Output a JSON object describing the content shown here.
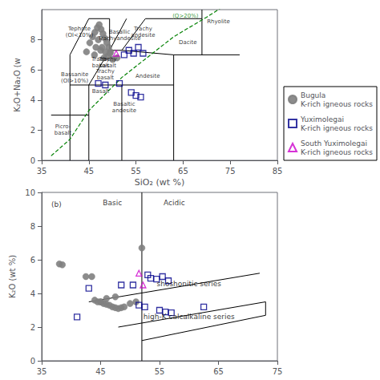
{
  "chart_data": [
    {
      "type": "scatter",
      "xlabel": "SiO₂ (wt %)",
      "ylabel": "K₂O+Na₂O (w",
      "xlim": [
        35,
        85
      ],
      "ylim": [
        0,
        10
      ],
      "xticks": [
        35,
        45,
        55,
        65,
        75,
        85
      ],
      "yticks": [
        0,
        2,
        4,
        6,
        8
      ],
      "legend": "lower right",
      "series": [
        {
          "name": "Bugula\nK-rich igneous rocks",
          "color": "#808080",
          "marker": "circle",
          "x": [
            44.5,
            45.2,
            45.8,
            46.3,
            46.8,
            47.2,
            47.6,
            48.0,
            48.4,
            48.8,
            49.2,
            49.6,
            46.5,
            47.0,
            47.8,
            48.5,
            49.0,
            50.0,
            51.0,
            46.2,
            47.5,
            48.2,
            49.5
          ],
          "values": [
            7.2,
            7.8,
            8.2,
            8.5,
            8.8,
            9.0,
            8.7,
            8.4,
            8.1,
            7.8,
            7.5,
            7.2,
            7.5,
            8.0,
            7.5,
            7.2,
            6.9,
            6.7,
            6.8,
            7.0,
            7.3,
            6.8,
            7.1
          ]
        },
        {
          "name": "Yuximolegai\nK-rich igneous rocks",
          "color": "#00008B",
          "marker": "square-open",
          "x": [
            47.0,
            48.5,
            51.5,
            52.5,
            53.5,
            54.5,
            55.5,
            56.5,
            54.0,
            55.0,
            56.0
          ],
          "values": [
            5.1,
            5.0,
            5.1,
            7.0,
            7.3,
            7.1,
            7.5,
            7.1,
            4.5,
            4.3,
            4.2
          ]
        },
        {
          "name": "South Yuximolegai\nK-rich igneous rocks",
          "color": "#CC00CC",
          "marker": "triangle-open",
          "x": [
            50.8
          ],
          "values": [
            7.1
          ]
        }
      ],
      "lines": [
        {
          "x": [
            37,
            41
          ],
          "y": [
            3,
            3
          ],
          "color": "black",
          "line_style": "solid"
        },
        {
          "x": [
            41,
            41
          ],
          "y": [
            0,
            3
          ],
          "color": "black",
          "line_style": "solid"
        },
        {
          "x": [
            41,
            45
          ],
          "y": [
            3,
            3
          ],
          "color": "black",
          "line_style": "solid"
        },
        {
          "x": [
            41,
            41
          ],
          "y": [
            3,
            7
          ],
          "color": "black",
          "line_style": "solid"
        },
        {
          "x": [
            41,
            45
          ],
          "y": [
            7,
            9.4
          ],
          "color": "black",
          "line_style": "solid"
        },
        {
          "x": [
            45,
            45
          ],
          "y": [
            0,
            5
          ],
          "color": "black",
          "line_style": "solid"
        },
        {
          "x": [
            45,
            52
          ],
          "y": [
            5,
            5
          ],
          "color": "black",
          "line_style": "solid"
        },
        {
          "x": [
            52,
            63
          ],
          "y": [
            5,
            5
          ],
          "color": "black",
          "line_style": "solid"
        },
        {
          "x": [
            63,
            77
          ],
          "y": [
            7,
            7
          ],
          "color": "black",
          "line_style": "solid"
        },
        {
          "x": [
            52,
            52
          ],
          "y": [
            0,
            5
          ],
          "color": "black",
          "line_style": "solid"
        },
        {
          "x": [
            63,
            63
          ],
          "y": [
            0,
            7
          ],
          "color": "black",
          "line_style": "solid"
        },
        {
          "x": [
            69,
            69
          ],
          "y": [
            7,
            10
          ],
          "color": "black",
          "line_style": "solid"
        },
        {
          "x": [
            45,
            49.4
          ],
          "y": [
            5,
            7.3
          ],
          "color": "black",
          "line_style": "solid"
        },
        {
          "x": [
            49.4,
            52
          ],
          "y": [
            7.3,
            7.3
          ],
          "color": "black",
          "line_style": "solid"
        },
        {
          "x": [
            52,
            57
          ],
          "y": [
            7.3,
            9.4
          ],
          "color": "black",
          "line_style": "solid"
        },
        {
          "x": [
            57,
            63
          ],
          "y": [
            9.4,
            9.4
          ],
          "color": "black",
          "line_style": "solid"
        },
        {
          "x": [
            63,
            69
          ],
          "y": [
            9.4,
            9.4
          ],
          "color": "black",
          "line_style": "solid"
        },
        {
          "x": [
            49.4,
            53
          ],
          "y": [
            7.3,
            9.4
          ],
          "color": "black",
          "line_style": "solid"
        },
        {
          "x": [
            52,
            63
          ],
          "y": [
            7.3,
            7
          ],
          "color": "black",
          "line_style": "solid"
        },
        {
          "x": [
            41,
            45
          ],
          "y": [
            5,
            5
          ],
          "color": "black",
          "line_style": "solid"
        },
        {
          "x": [
            45,
            49.4
          ],
          "y": [
            9.4,
            9.4
          ],
          "color": "black",
          "line_style": "solid"
        },
        {
          "x": [
            49.4,
            49.4
          ],
          "y": [
            7.3,
            9.4
          ],
          "color": "black",
          "line_style": "solid"
        },
        {
          "x": [
            37,
            41,
            45,
            52,
            63,
            70,
            75
          ],
          "y": [
            0.3,
            1.4,
            3.3,
            5.5,
            8.2,
            9.5,
            10.5
          ],
          "color": "green",
          "line_style": "dashed"
        }
      ],
      "annotations": [
        {
          "text": "Rhyolite",
          "x": 72.5,
          "y": 9.2
        },
        {
          "text": "Dacite",
          "x": 66,
          "y": 7.8
        },
        {
          "text": "Andesite",
          "x": 57.5,
          "y": 5.6
        },
        {
          "text": "Trachy\nandesite",
          "x": 56.5,
          "y": 8.5
        },
        {
          "text": "Basaltic\nandesite",
          "x": 52.5,
          "y": 3.5
        },
        {
          "text": "Tephrite\n(Ol<10%)",
          "x": 43.0,
          "y": 8.5
        },
        {
          "text": "Trachy\nbasalt",
          "x": 49.0,
          "y": 6.5
        },
        {
          "text": "Basallic\nTrachyandesite",
          "x": 51.5,
          "y": 8.3
        },
        {
          "text": "Bassanite\n(Ol>10%)",
          "x": 42.0,
          "y": 5.5
        },
        {
          "text": "Basalt",
          "x": 47.5,
          "y": 4.6
        },
        {
          "text": "Picro-\nbasalt",
          "x": 39.5,
          "y": 2.0
        },
        {
          "text": "Trachy\nbasalt",
          "x": 47.5,
          "y": 6.5
        },
        {
          "text": "Trachy\nbasalt",
          "x": 48.5,
          "y": 5.7
        },
        {
          "text": "(Q>20%)",
          "x": 65.5,
          "y": 9.6,
          "color": "green"
        }
      ]
    },
    {
      "type": "scatter",
      "ylabel": "K₂O (wt %)",
      "xlim": [
        35,
        75
      ],
      "ylim": [
        0,
        10
      ],
      "xticks": [
        35,
        45,
        55,
        65,
        75
      ],
      "yticks": [
        0,
        2,
        4,
        6,
        8,
        10
      ],
      "series": [
        {
          "color": "#808080",
          "marker": "circle",
          "x": [
            38.0,
            38.5,
            42.5,
            43.5,
            44.5,
            45.0,
            45.5,
            46.0,
            46.5,
            47.0,
            47.5,
            48.0,
            48.5,
            49.0,
            50.0,
            51.0,
            52.0,
            44.0,
            45.0,
            46.0,
            47.5
          ],
          "values": [
            5.75,
            5.7,
            5.0,
            5.0,
            3.5,
            3.5,
            3.4,
            3.35,
            3.3,
            3.2,
            3.15,
            3.1,
            3.15,
            3.2,
            3.4,
            3.5,
            6.7,
            3.6,
            3.5,
            3.7,
            3.8
          ]
        },
        {
          "color": "#00008B",
          "marker": "square-open",
          "x": [
            41.0,
            43.0,
            48.5,
            50.5,
            51.5,
            52.5,
            53.0,
            53.5,
            54.5,
            55.5,
            56.5,
            62.5,
            55.0,
            56.0,
            57.0
          ],
          "values": [
            2.6,
            4.3,
            4.5,
            4.5,
            3.3,
            3.2,
            5.1,
            4.9,
            4.85,
            5.0,
            4.75,
            3.2,
            3.0,
            2.9,
            2.85
          ]
        },
        {
          "color": "#CC00CC",
          "marker": "triangle-open",
          "x": [
            51.5,
            52.2
          ],
          "values": [
            5.2,
            4.5
          ]
        }
      ],
      "lines": [
        {
          "x": [
            52,
            52
          ],
          "y": [
            0,
            10
          ],
          "color": "black",
          "line_style": "solid"
        },
        {
          "x": [
            43,
            72
          ],
          "y": [
            3.5,
            5.2
          ],
          "color": "black",
          "line_style": "solid"
        },
        {
          "x": [
            48,
            73
          ],
          "y": [
            2.0,
            3.5
          ],
          "color": "black",
          "line_style": "solid"
        },
        {
          "x": [
            52,
            73
          ],
          "y": [
            1.2,
            2.7
          ],
          "color": "black",
          "line_style": "solid"
        },
        {
          "x": [
            73,
            73
          ],
          "y": [
            2.7,
            3.5
          ],
          "color": "black",
          "line_style": "solid"
        }
      ],
      "annotations": [
        {
          "text": "(b)",
          "x": 37.5,
          "y": 9.3
        },
        {
          "text": "Basic",
          "x": 47.0,
          "y": 9.4
        },
        {
          "text": "Acidic",
          "x": 57.5,
          "y": 9.4
        },
        {
          "text": "shoshonitic series",
          "x": 60,
          "y": 4.55
        },
        {
          "text": "high-K calcalkaline series",
          "x": 60,
          "y": 2.6
        }
      ]
    }
  ]
}
